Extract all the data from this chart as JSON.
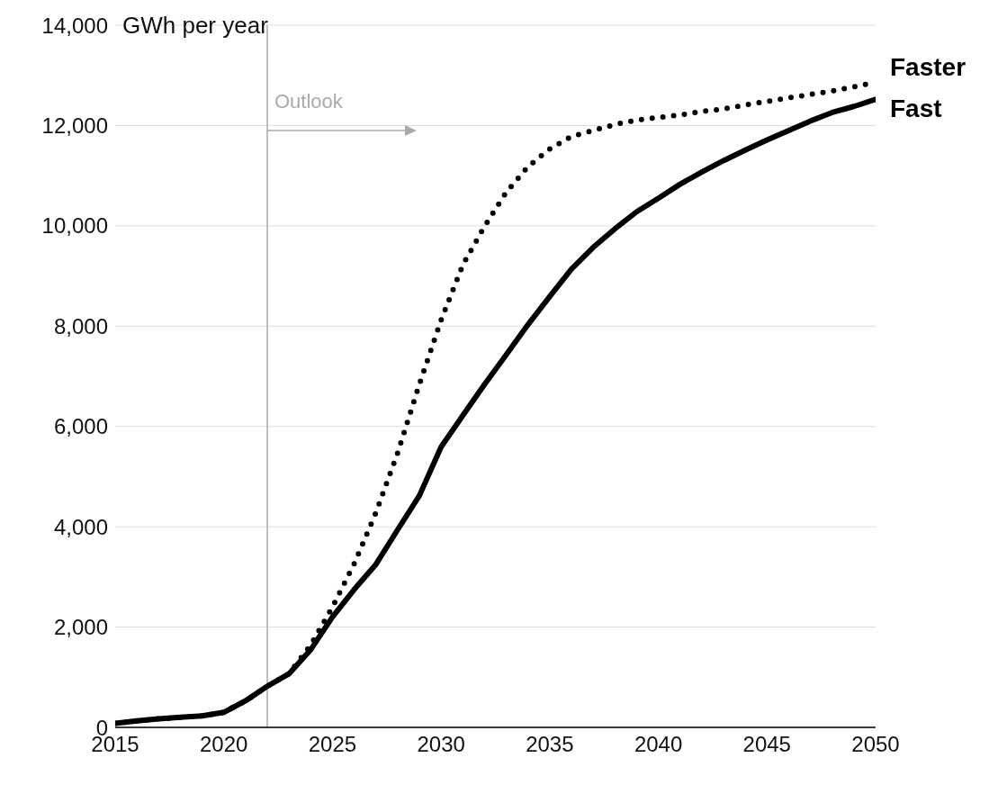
{
  "chart_data": {
    "type": "line",
    "ylabel": "GWh per year",
    "x": [
      2015,
      2016,
      2017,
      2018,
      2019,
      2020,
      2021,
      2022,
      2023,
      2024,
      2025,
      2026,
      2027,
      2028,
      2029,
      2030,
      2031,
      2032,
      2033,
      2034,
      2035,
      2036,
      2037,
      2038,
      2039,
      2040,
      2041,
      2042,
      2043,
      2044,
      2045,
      2046,
      2047,
      2048,
      2049,
      2050
    ],
    "series": [
      {
        "name": "Faster",
        "color": "#000000",
        "line_style": "dotted",
        "values": [
          80,
          130,
          170,
          200,
          230,
          300,
          530,
          820,
          1070,
          1640,
          2400,
          3260,
          4280,
          5470,
          6840,
          8120,
          9220,
          9990,
          10670,
          11180,
          11530,
          11780,
          11900,
          12020,
          12110,
          12160,
          12210,
          12280,
          12330,
          12410,
          12480,
          12550,
          12620,
          12690,
          12770,
          12860
        ]
      },
      {
        "name": "Fast",
        "color": "#000000",
        "line_style": "solid",
        "values": [
          80,
          130,
          170,
          200,
          230,
          300,
          530,
          820,
          1070,
          1550,
          2200,
          2750,
          3250,
          3940,
          4620,
          5590,
          6220,
          6840,
          7430,
          8030,
          8590,
          9140,
          9570,
          9940,
          10280,
          10550,
          10830,
          11070,
          11300,
          11510,
          11710,
          11900,
          12090,
          12260,
          12380,
          12520
        ]
      }
    ],
    "xlim": [
      2015,
      2050
    ],
    "xticks": [
      2015,
      2020,
      2025,
      2030,
      2035,
      2040,
      2045,
      2050
    ],
    "ylim": [
      0,
      14000
    ],
    "yticks": [
      0,
      {
        "value": 2000,
        "label": "2,000"
      },
      {
        "value": 4000,
        "label": "4,000"
      },
      {
        "value": 6000,
        "label": "6,000"
      },
      {
        "value": 8000,
        "label": "8,000"
      },
      {
        "value": 10000,
        "label": "10,000"
      },
      {
        "value": 12000,
        "label": "12,000"
      },
      {
        "value": 14000,
        "label": "14,000"
      }
    ],
    "grid": "y",
    "ref_lines": [
      {
        "axis": "x",
        "value": 2022,
        "label": "Outlook",
        "color": "#aaaaaa"
      }
    ]
  }
}
